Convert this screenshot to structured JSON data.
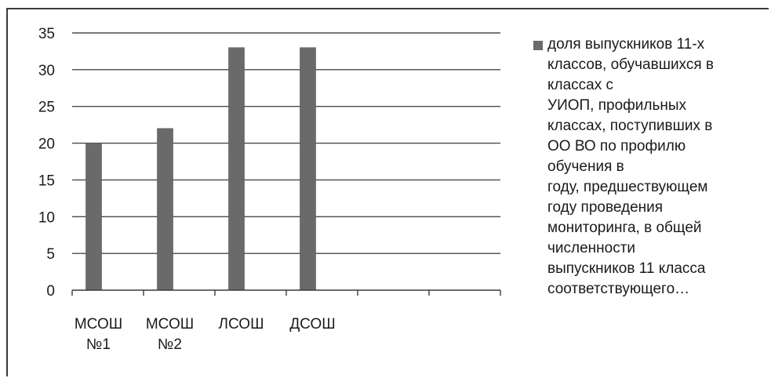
{
  "chart_data": {
    "type": "bar",
    "categories": [
      [
        "МСОШ",
        "№1"
      ],
      [
        "МСОШ",
        "№2"
      ],
      [
        "ЛСОШ"
      ],
      [
        "ДСОШ"
      ],
      [
        ""
      ],
      [
        ""
      ]
    ],
    "series": [
      {
        "name": "доля выпускников 11-х классов, обучавшихся в классах с УИОП, профильных классах, поступивших в ОО ВО по профилю обучения в году, предшествующем году проведения мониторинга, в общей численности выпускников 11 класса соответствующего…",
        "values": [
          20,
          22,
          33,
          33,
          null,
          null
        ],
        "color": "#6a6a6a"
      }
    ],
    "ylim": [
      0,
      35
    ],
    "yticks": [
      0,
      5,
      10,
      15,
      20,
      25,
      30,
      35
    ],
    "grid": true,
    "legend_position": "right",
    "legend_lines": [
      "доля выпускников 11-х",
      "классов, обучавшихся в",
      "классах с",
      "УИОП, профильных",
      "классах, поступивших в",
      "ОО ВО по профилю",
      "обучения в",
      "году, предшествующем",
      "году проведения",
      "мониторинга, в общей",
      "численности",
      "выпускников 11 класса",
      "соответствующего…"
    ]
  }
}
